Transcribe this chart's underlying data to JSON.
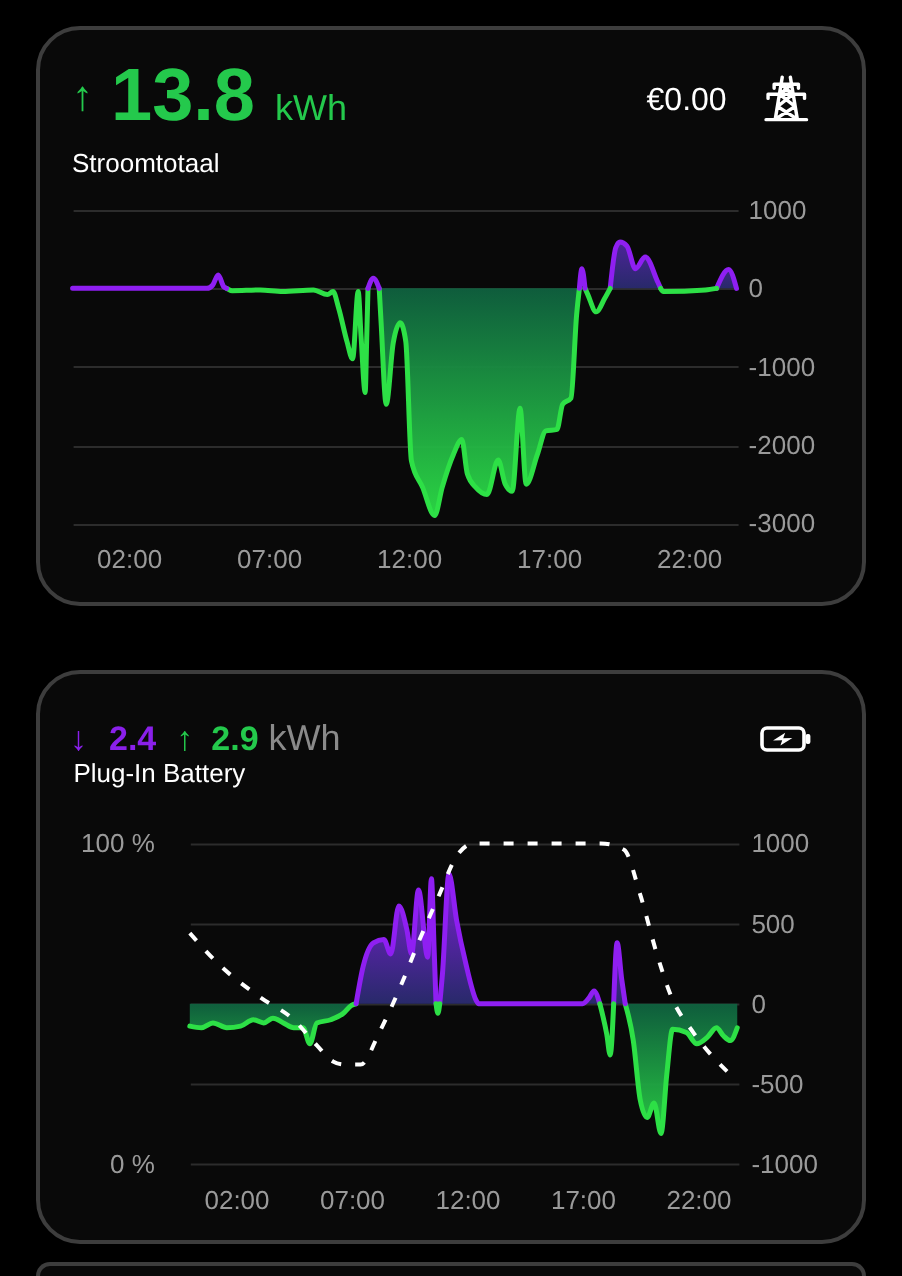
{
  "chart_data": [
    {
      "type": "area",
      "title": "Stroomtotaal",
      "annotations": [
        "↑ 13.8 kWh",
        "€0.00"
      ],
      "xlim": [
        0,
        23.75
      ],
      "xticks": [
        {
          "value": 2,
          "label": "02:00"
        },
        {
          "value": 7,
          "label": "07:00"
        },
        {
          "value": 12,
          "label": "12:00"
        },
        {
          "value": 17,
          "label": "17:00"
        },
        {
          "value": 22,
          "label": "22:00"
        }
      ],
      "ylim": [
        -3000,
        1000
      ],
      "yticks": [
        -3000,
        -2000,
        -1000,
        0,
        1000
      ],
      "grid": "y",
      "series": [
        {
          "color": "#2de046",
          "x": [
            10.95,
            11.02,
            11.2,
            11.45,
            11.7,
            11.9,
            12.1,
            12.5,
            12.93,
            13.2,
            13.6,
            13.9,
            14.1,
            14.4,
            14.8,
            15.2,
            15.45,
            15.7,
            15.98,
            16.2,
            16.6,
            16.9,
            17.3,
            17.5,
            17.8,
            18.0,
            18.1
          ],
          "values": [
            0,
            -450,
            -1480,
            -700,
            -440,
            -680,
            -2200,
            -2540,
            -2900,
            -2540,
            -2120,
            -1930,
            -2370,
            -2540,
            -2630,
            -2190,
            -2500,
            -2590,
            -1530,
            -2500,
            -2120,
            -1820,
            -1800,
            -1480,
            -1400,
            -340,
            0
          ]
        },
        {
          "color": "#8f1ff2",
          "x": [
            19.2,
            19.4,
            19.55,
            19.8,
            20.1,
            20.45,
            20.9,
            21.0
          ],
          "values": [
            0,
            520,
            590,
            540,
            250,
            400,
            80,
            0
          ]
        },
        {
          "color": "#8f1ff2",
          "x": [
            23.0,
            23.43,
            23.71
          ],
          "values": [
            0,
            240,
            0
          ]
        },
        {
          "type": "line",
          "color": "#2de046",
          "x": [
            5.5,
            5.7,
            6.7,
            7.5,
            8.6,
            9.1,
            9.3,
            9.5,
            9.8,
            10.0,
            10.2,
            10.3,
            10.45,
            10.5,
            10.55
          ],
          "values": [
            0,
            -30,
            -20,
            -40,
            -20,
            -80,
            -40,
            -250,
            -680,
            -900,
            -40,
            -600,
            -1330,
            -700,
            0
          ]
        },
        {
          "type": "line",
          "color": "#2de046",
          "x": [
            18.3,
            18.4,
            18.7,
            19.0,
            19.2,
            20.1,
            21.0,
            21.1,
            22.6,
            23.0
          ],
          "values": [
            0,
            -80,
            -300,
            -130,
            0,
            null,
            0,
            -40,
            -20,
            0
          ]
        },
        {
          "type": "line",
          "color": "#8f1ff2",
          "x": [
            0,
            2,
            4.8,
            5.0,
            5.2,
            5.4,
            5.5,
            8.0,
            10.55,
            10.74,
            10.95,
            14.0,
            18.1,
            18.19,
            18.3
          ],
          "values": [
            0,
            0,
            0,
            40,
            170,
            20,
            0,
            null,
            0,
            130,
            0,
            null,
            0,
            250,
            0
          ]
        }
      ]
    },
    {
      "type": "area",
      "title": "Plug-In Battery",
      "annotations": [
        "↓ 2.4 ↑ 2.9 kWh"
      ],
      "xlim": [
        0,
        23.75
      ],
      "xticks": [
        {
          "value": 2,
          "label": "02:00"
        },
        {
          "value": 7,
          "label": "07:00"
        },
        {
          "value": 12,
          "label": "12:00"
        },
        {
          "value": 17,
          "label": "17:00"
        },
        {
          "value": 22,
          "label": "22:00"
        }
      ],
      "ylim": [
        -1000,
        1000
      ],
      "yticks": [
        -1000,
        -500,
        0,
        500,
        1000
      ],
      "y2lim": [
        0,
        100
      ],
      "y2ticks": [
        {
          "value": 0,
          "label": "0 %"
        },
        {
          "value": 100,
          "label": "100 %"
        }
      ],
      "grid": "y",
      "series": [
        {
          "color": "#2de046",
          "x": [
            0,
            0.5,
            1.0,
            1.6,
            2.2,
            2.75,
            3.2,
            3.6,
            4.05,
            4.5,
            4.9,
            5.2,
            5.5,
            6.1,
            6.65,
            7.0,
            7.2
          ],
          "values": [
            -140,
            -150,
            -120,
            -150,
            -140,
            -100,
            -120,
            -90,
            -120,
            -150,
            -150,
            -250,
            -120,
            -100,
            -60,
            -10,
            0
          ]
        },
        {
          "color": "#2de046",
          "x": [
            18.85,
            19.2,
            19.5,
            19.8,
            20.1,
            20.4,
            20.65,
            20.9,
            21.5,
            21.95,
            22.4,
            22.8,
            23.1,
            23.4,
            23.7
          ],
          "values": [
            0,
            -230,
            -600,
            -710,
            -620,
            -810,
            -440,
            -160,
            -180,
            -250,
            -210,
            -150,
            -200,
            -230,
            -150
          ]
        },
        {
          "color": "#8f1ff2",
          "x": [
            7.2,
            7.5,
            7.95,
            8.4,
            8.7,
            9.05,
            9.4,
            9.6,
            9.9,
            10.3,
            10.46,
            10.58,
            10.66
          ],
          "values": [
            0,
            230,
            380,
            400,
            310,
            610,
            460,
            310,
            710,
            290,
            780,
            330,
            0
          ]
        },
        {
          "color": "#8f1ff2",
          "x": [
            10.82,
            10.94,
            11.22,
            11.55,
            11.95,
            12.4,
            12.5,
            15.0,
            17.0,
            17.3,
            17.5,
            17.75
          ],
          "values": [
            0,
            190,
            810,
            520,
            250,
            20,
            0,
            0,
            0,
            40,
            80,
            0
          ]
        },
        {
          "color": "#8f1ff2",
          "x": [
            18.35,
            18.5,
            18.7,
            18.85
          ],
          "values": [
            0,
            380,
            150,
            0
          ]
        },
        {
          "type": "line",
          "color": "#2de046",
          "x": [
            10.66,
            10.74,
            10.82
          ],
          "values": [
            0,
            -60,
            0
          ]
        },
        {
          "type": "line",
          "color": "#2de046",
          "x": [
            17.75,
            18.05,
            18.2,
            18.35
          ],
          "values": [
            0,
            -190,
            -320,
            0
          ]
        },
        {
          "type": "line",
          "color": "#ffffff",
          "line_style": "dashed",
          "axis": "y2",
          "x": [
            0,
            1.3,
            3.05,
            4.5,
            5.5,
            6.2,
            6.7,
            7.4,
            8.2,
            9.1,
            9.95,
            10.8,
            11.55,
            12.3,
            17.8,
            18.8,
            19.5,
            20.2,
            20.8,
            21.8,
            22.7,
            23.7
          ],
          "values": [
            72,
            62,
            52,
            45,
            37,
            32,
            31,
            31,
            41,
            55,
            70,
            84,
            96,
            100,
            100,
            98,
            84,
            66,
            53,
            41,
            33,
            26
          ]
        }
      ]
    }
  ]
}
